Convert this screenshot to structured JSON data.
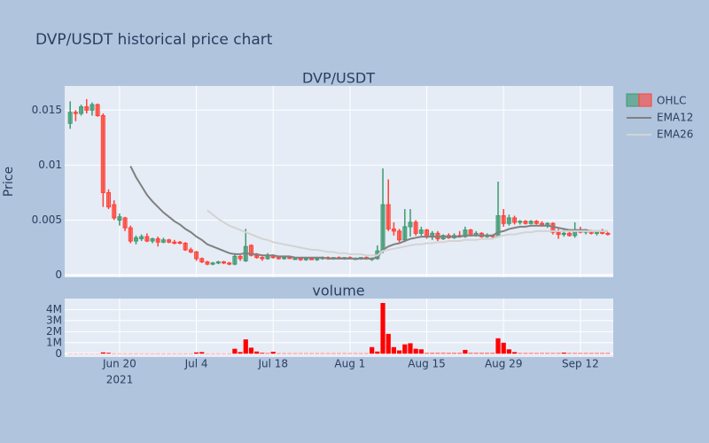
{
  "chart_data": [
    {
      "type": "candlestick",
      "title": "DVP/USDT historical price chart",
      "subtitle": "DVP/USDT",
      "y_label": "Price",
      "name": "OHLC",
      "increasing_color": "#3d9970",
      "decreasing_color": "#ff4136",
      "x": [
        "2021-06-11",
        "2021-06-12",
        "2021-06-13",
        "2021-06-14",
        "2021-06-15",
        "2021-06-16",
        "2021-06-17",
        "2021-06-18",
        "2021-06-19",
        "2021-06-20",
        "2021-06-21",
        "2021-06-22",
        "2021-06-23",
        "2021-06-24",
        "2021-06-25",
        "2021-06-26",
        "2021-06-27",
        "2021-06-28",
        "2021-06-29",
        "2021-06-30",
        "2021-07-01",
        "2021-07-02",
        "2021-07-03",
        "2021-07-04",
        "2021-07-05",
        "2021-07-06",
        "2021-07-07",
        "2021-07-08",
        "2021-07-09",
        "2021-07-10",
        "2021-07-11",
        "2021-07-12",
        "2021-07-13",
        "2021-07-14",
        "2021-07-15",
        "2021-07-16",
        "2021-07-17",
        "2021-07-18",
        "2021-07-19",
        "2021-07-20",
        "2021-07-21",
        "2021-07-22",
        "2021-07-23",
        "2021-07-24",
        "2021-07-25",
        "2021-07-26",
        "2021-07-27",
        "2021-07-28",
        "2021-07-29",
        "2021-07-30",
        "2021-07-31",
        "2021-08-01",
        "2021-08-02",
        "2021-08-03",
        "2021-08-04",
        "2021-08-05",
        "2021-08-06",
        "2021-08-07",
        "2021-08-08",
        "2021-08-09",
        "2021-08-10",
        "2021-08-11",
        "2021-08-12",
        "2021-08-13",
        "2021-08-14",
        "2021-08-15",
        "2021-08-16",
        "2021-08-17",
        "2021-08-18",
        "2021-08-19",
        "2021-08-20",
        "2021-08-21",
        "2021-08-22",
        "2021-08-23",
        "2021-08-24",
        "2021-08-25",
        "2021-08-26",
        "2021-08-27",
        "2021-08-28",
        "2021-08-29",
        "2021-08-30",
        "2021-08-31",
        "2021-09-01",
        "2021-09-02",
        "2021-09-03",
        "2021-09-04",
        "2021-09-05",
        "2021-09-06",
        "2021-09-07",
        "2021-09-08",
        "2021-09-09",
        "2021-09-10",
        "2021-09-11",
        "2021-09-12",
        "2021-09-13",
        "2021-09-14",
        "2021-09-15",
        "2021-09-16",
        "2021-09-17"
      ],
      "open": [
        0.0138,
        0.0148,
        0.0147,
        0.0153,
        0.015,
        0.0155,
        0.0145,
        0.0075,
        0.0064,
        0.005,
        0.0052,
        0.0043,
        0.0031,
        0.0033,
        0.0035,
        0.0031,
        0.0033,
        0.003,
        0.0032,
        0.003,
        0.003,
        0.0029,
        0.0023,
        0.0021,
        0.0015,
        0.0012,
        0.001,
        0.0011,
        0.0012,
        0.0011,
        0.001,
        0.0017,
        0.0013,
        0.0027,
        0.0018,
        0.0016,
        0.0015,
        0.0018,
        0.0016,
        0.0015,
        0.0016,
        0.0015,
        0.0015,
        0.0014,
        0.0015,
        0.0014,
        0.0015,
        0.0016,
        0.0015,
        0.0016,
        0.0015,
        0.0016,
        0.0015,
        0.0015,
        0.0016,
        0.0015,
        0.0015,
        0.0022,
        0.0064,
        0.0042,
        0.004,
        0.0032,
        0.0044,
        0.0048,
        0.0038,
        0.0041,
        0.0035,
        0.0038,
        0.0033,
        0.0036,
        0.0034,
        0.0036,
        0.0035,
        0.0041,
        0.0036,
        0.0038,
        0.0035,
        0.0036,
        0.0035,
        0.0054,
        0.0047,
        0.0052,
        0.0048,
        0.0049,
        0.0047,
        0.0049,
        0.0047,
        0.0045,
        0.0047,
        0.0039,
        0.0037,
        0.0038,
        0.0036,
        0.004,
        0.0039,
        0.004,
        0.0038,
        0.0039,
        0.0038
      ],
      "high": [
        0.0158,
        0.015,
        0.0155,
        0.016,
        0.0157,
        0.0156,
        0.0147,
        0.0078,
        0.0068,
        0.0056,
        0.0053,
        0.0045,
        0.0036,
        0.0037,
        0.0038,
        0.0034,
        0.0035,
        0.0034,
        0.0033,
        0.0032,
        0.0031,
        0.003,
        0.0025,
        0.0022,
        0.0016,
        0.0013,
        0.0012,
        0.0013,
        0.0013,
        0.0012,
        0.002,
        0.0018,
        0.0042,
        0.0028,
        0.002,
        0.0017,
        0.002,
        0.0019,
        0.0017,
        0.0016,
        0.0017,
        0.0016,
        0.0016,
        0.0016,
        0.0016,
        0.0015,
        0.0017,
        0.0017,
        0.0016,
        0.0017,
        0.0016,
        0.0017,
        0.0016,
        0.0016,
        0.0017,
        0.0016,
        0.0027,
        0.0097,
        0.0087,
        0.0048,
        0.0042,
        0.006,
        0.006,
        0.005,
        0.0044,
        0.0042,
        0.004,
        0.004,
        0.0037,
        0.0038,
        0.0038,
        0.004,
        0.0044,
        0.0042,
        0.004,
        0.0039,
        0.0038,
        0.0037,
        0.0085,
        0.006,
        0.0055,
        0.0054,
        0.005,
        0.005,
        0.005,
        0.005,
        0.0049,
        0.0048,
        0.0048,
        0.0042,
        0.0042,
        0.004,
        0.0048,
        0.0044,
        0.0042,
        0.0041,
        0.004,
        0.0042,
        0.0039
      ],
      "low": [
        0.0133,
        0.014,
        0.0145,
        0.0147,
        0.0145,
        0.0144,
        0.0062,
        0.006,
        0.005,
        0.0045,
        0.004,
        0.0029,
        0.0028,
        0.0031,
        0.003,
        0.0029,
        0.0026,
        0.0029,
        0.0029,
        0.0028,
        0.0028,
        0.0022,
        0.002,
        0.0013,
        0.0011,
        0.0009,
        0.0009,
        0.001,
        0.001,
        0.0009,
        0.0009,
        0.0013,
        0.0012,
        0.0017,
        0.0015,
        0.0013,
        0.0014,
        0.0015,
        0.0014,
        0.0014,
        0.0015,
        0.0014,
        0.0013,
        0.0013,
        0.0014,
        0.0013,
        0.0014,
        0.0014,
        0.0014,
        0.0015,
        0.0014,
        0.0015,
        0.0014,
        0.0014,
        0.0014,
        0.0013,
        0.0014,
        0.002,
        0.004,
        0.0036,
        0.003,
        0.003,
        0.0035,
        0.0036,
        0.0036,
        0.0033,
        0.0032,
        0.0031,
        0.0032,
        0.0033,
        0.0033,
        0.0034,
        0.0034,
        0.0035,
        0.0035,
        0.0034,
        0.0034,
        0.0034,
        0.0034,
        0.0044,
        0.0045,
        0.0046,
        0.0046,
        0.0046,
        0.0046,
        0.0046,
        0.0044,
        0.0043,
        0.0037,
        0.0033,
        0.0035,
        0.0035,
        0.0034,
        0.0038,
        0.0037,
        0.0037,
        0.0036,
        0.0037,
        0.0036
      ],
      "close": [
        0.0148,
        0.0147,
        0.0153,
        0.015,
        0.0155,
        0.0145,
        0.0075,
        0.0062,
        0.0052,
        0.0053,
        0.0043,
        0.0031,
        0.0034,
        0.0035,
        0.0031,
        0.0033,
        0.003,
        0.0032,
        0.003,
        0.0029,
        0.0029,
        0.0023,
        0.0021,
        0.0015,
        0.0012,
        0.001,
        0.0011,
        0.0012,
        0.0011,
        0.001,
        0.0017,
        0.0015,
        0.0026,
        0.0018,
        0.0016,
        0.0015,
        0.0018,
        0.0016,
        0.0015,
        0.0016,
        0.0015,
        0.0015,
        0.0014,
        0.0015,
        0.0014,
        0.0015,
        0.0016,
        0.0015,
        0.0016,
        0.0015,
        0.0016,
        0.0015,
        0.0015,
        0.0016,
        0.0015,
        0.0015,
        0.0022,
        0.0064,
        0.0042,
        0.004,
        0.0032,
        0.0044,
        0.0048,
        0.0038,
        0.0041,
        0.0035,
        0.0038,
        0.0033,
        0.0036,
        0.0034,
        0.0036,
        0.0035,
        0.0041,
        0.0036,
        0.0038,
        0.0035,
        0.0036,
        0.0035,
        0.0054,
        0.0047,
        0.0052,
        0.0048,
        0.0049,
        0.0047,
        0.0049,
        0.0047,
        0.0045,
        0.0047,
        0.0039,
        0.0037,
        0.0038,
        0.0036,
        0.004,
        0.0039,
        0.004,
        0.0038,
        0.0039,
        0.0038,
        0.0037
      ],
      "series": [
        {
          "name": "EMA12",
          "color": "#808080",
          "values": [
            null,
            null,
            null,
            null,
            null,
            null,
            null,
            null,
            null,
            null,
            null,
            0.0099,
            0.0089,
            0.0081,
            0.0073,
            0.0067,
            0.0062,
            0.0057,
            0.0053,
            0.0049,
            0.0046,
            0.0042,
            0.0039,
            0.0035,
            0.0032,
            0.0028,
            0.0026,
            0.0024,
            0.0022,
            0.002,
            0.0019,
            0.0019,
            0.002,
            0.0019,
            0.0019,
            0.0018,
            0.0018,
            0.0018,
            0.0017,
            0.0017,
            0.0017,
            0.0016,
            0.0016,
            0.0016,
            0.0016,
            0.0016,
            0.0016,
            0.0015,
            0.0015,
            0.0015,
            0.0015,
            0.0015,
            0.0015,
            0.0015,
            0.0015,
            0.0015,
            0.0016,
            0.0023,
            0.0026,
            0.0028,
            0.0029,
            0.0031,
            0.0033,
            0.0034,
            0.0035,
            0.0035,
            0.0035,
            0.0035,
            0.0035,
            0.0035,
            0.0035,
            0.0035,
            0.0036,
            0.0036,
            0.0036,
            0.0036,
            0.0036,
            0.0036,
            0.0039,
            0.004,
            0.0042,
            0.0043,
            0.0044,
            0.0044,
            0.0045,
            0.0045,
            0.0045,
            0.0045,
            0.0044,
            0.0043,
            0.0042,
            0.0041,
            0.0041,
            0.0041,
            0.0041,
            0.004,
            0.004,
            0.004,
            0.004
          ]
        },
        {
          "name": "EMA26",
          "color": "#d3d3d3",
          "values": [
            null,
            null,
            null,
            null,
            null,
            null,
            null,
            null,
            null,
            null,
            null,
            null,
            null,
            null,
            null,
            null,
            null,
            null,
            null,
            null,
            null,
            null,
            null,
            null,
            null,
            0.0059,
            0.0055,
            0.0051,
            0.0048,
            0.0045,
            0.0043,
            0.0041,
            0.0039,
            0.0037,
            0.0035,
            0.0033,
            0.0032,
            0.003,
            0.0029,
            0.0028,
            0.0027,
            0.0026,
            0.0025,
            0.0024,
            0.0023,
            0.0023,
            0.0022,
            0.0021,
            0.0021,
            0.002,
            0.002,
            0.0019,
            0.0019,
            0.0019,
            0.0018,
            0.0018,
            0.0018,
            0.0022,
            0.0023,
            0.0024,
            0.0025,
            0.0026,
            0.0027,
            0.0028,
            0.0028,
            0.0029,
            0.0029,
            0.003,
            0.003,
            0.0031,
            0.0031,
            0.0031,
            0.0032,
            0.0032,
            0.0032,
            0.0033,
            0.0033,
            0.0033,
            0.0035,
            0.0036,
            0.0037,
            0.0037,
            0.0038,
            0.0039,
            0.0039,
            0.004,
            0.004,
            0.004,
            0.004,
            0.004,
            0.004,
            0.004,
            0.004,
            0.004,
            0.004,
            0.004,
            0.004,
            0.004,
            0.004
          ]
        }
      ],
      "xlim": [
        "2021-06-10",
        "2021-09-18"
      ],
      "xticks": [
        {
          "value": "2021-06-20",
          "label": "Jun 20"
        },
        {
          "value": "2021-07-04",
          "label": "Jul 4"
        },
        {
          "value": "2021-07-18",
          "label": "Jul 18"
        },
        {
          "value": "2021-08-01",
          "label": "Aug 1"
        },
        {
          "value": "2021-08-15",
          "label": "Aug 15"
        },
        {
          "value": "2021-08-29",
          "label": "Aug 29"
        },
        {
          "value": "2021-09-12",
          "label": "Sep 12"
        }
      ],
      "xtick_year": "2021",
      "ylim": [
        -0.0002,
        0.0172
      ],
      "yticks": [
        0,
        0.005,
        0.01,
        0.015
      ],
      "grid": true
    },
    {
      "type": "bar",
      "subtitle": "volume",
      "color": "#ff0000",
      "values": [
        20000,
        20000,
        20000,
        20000,
        20000,
        20000,
        120000,
        80000,
        30000,
        30000,
        30000,
        30000,
        30000,
        30000,
        30000,
        30000,
        30000,
        30000,
        30000,
        30000,
        30000,
        30000,
        30000,
        120000,
        150000,
        30000,
        30000,
        30000,
        30000,
        30000,
        450000,
        150000,
        1300000,
        550000,
        200000,
        80000,
        50000,
        180000,
        40000,
        40000,
        40000,
        40000,
        40000,
        40000,
        40000,
        40000,
        40000,
        40000,
        40000,
        40000,
        40000,
        40000,
        40000,
        40000,
        40000,
        600000,
        200000,
        4600000,
        1800000,
        600000,
        300000,
        850000,
        950000,
        450000,
        400000,
        60000,
        60000,
        60000,
        60000,
        60000,
        60000,
        60000,
        350000,
        60000,
        60000,
        60000,
        60000,
        60000,
        1400000,
        1000000,
        400000,
        150000,
        50000,
        50000,
        50000,
        50000,
        50000,
        50000,
        50000,
        50000,
        100000,
        50000,
        50000,
        50000,
        50000,
        50000,
        50000,
        50000,
        50000
      ],
      "ylim": [
        -300000,
        5000000
      ],
      "yticks": [
        0,
        {
          "value": 1000000,
          "label": "1M"
        },
        {
          "value": 2000000,
          "label": "2M"
        },
        {
          "value": 3000000,
          "label": "3M"
        },
        {
          "value": 4000000,
          "label": "4M"
        }
      ],
      "grid": true
    }
  ]
}
